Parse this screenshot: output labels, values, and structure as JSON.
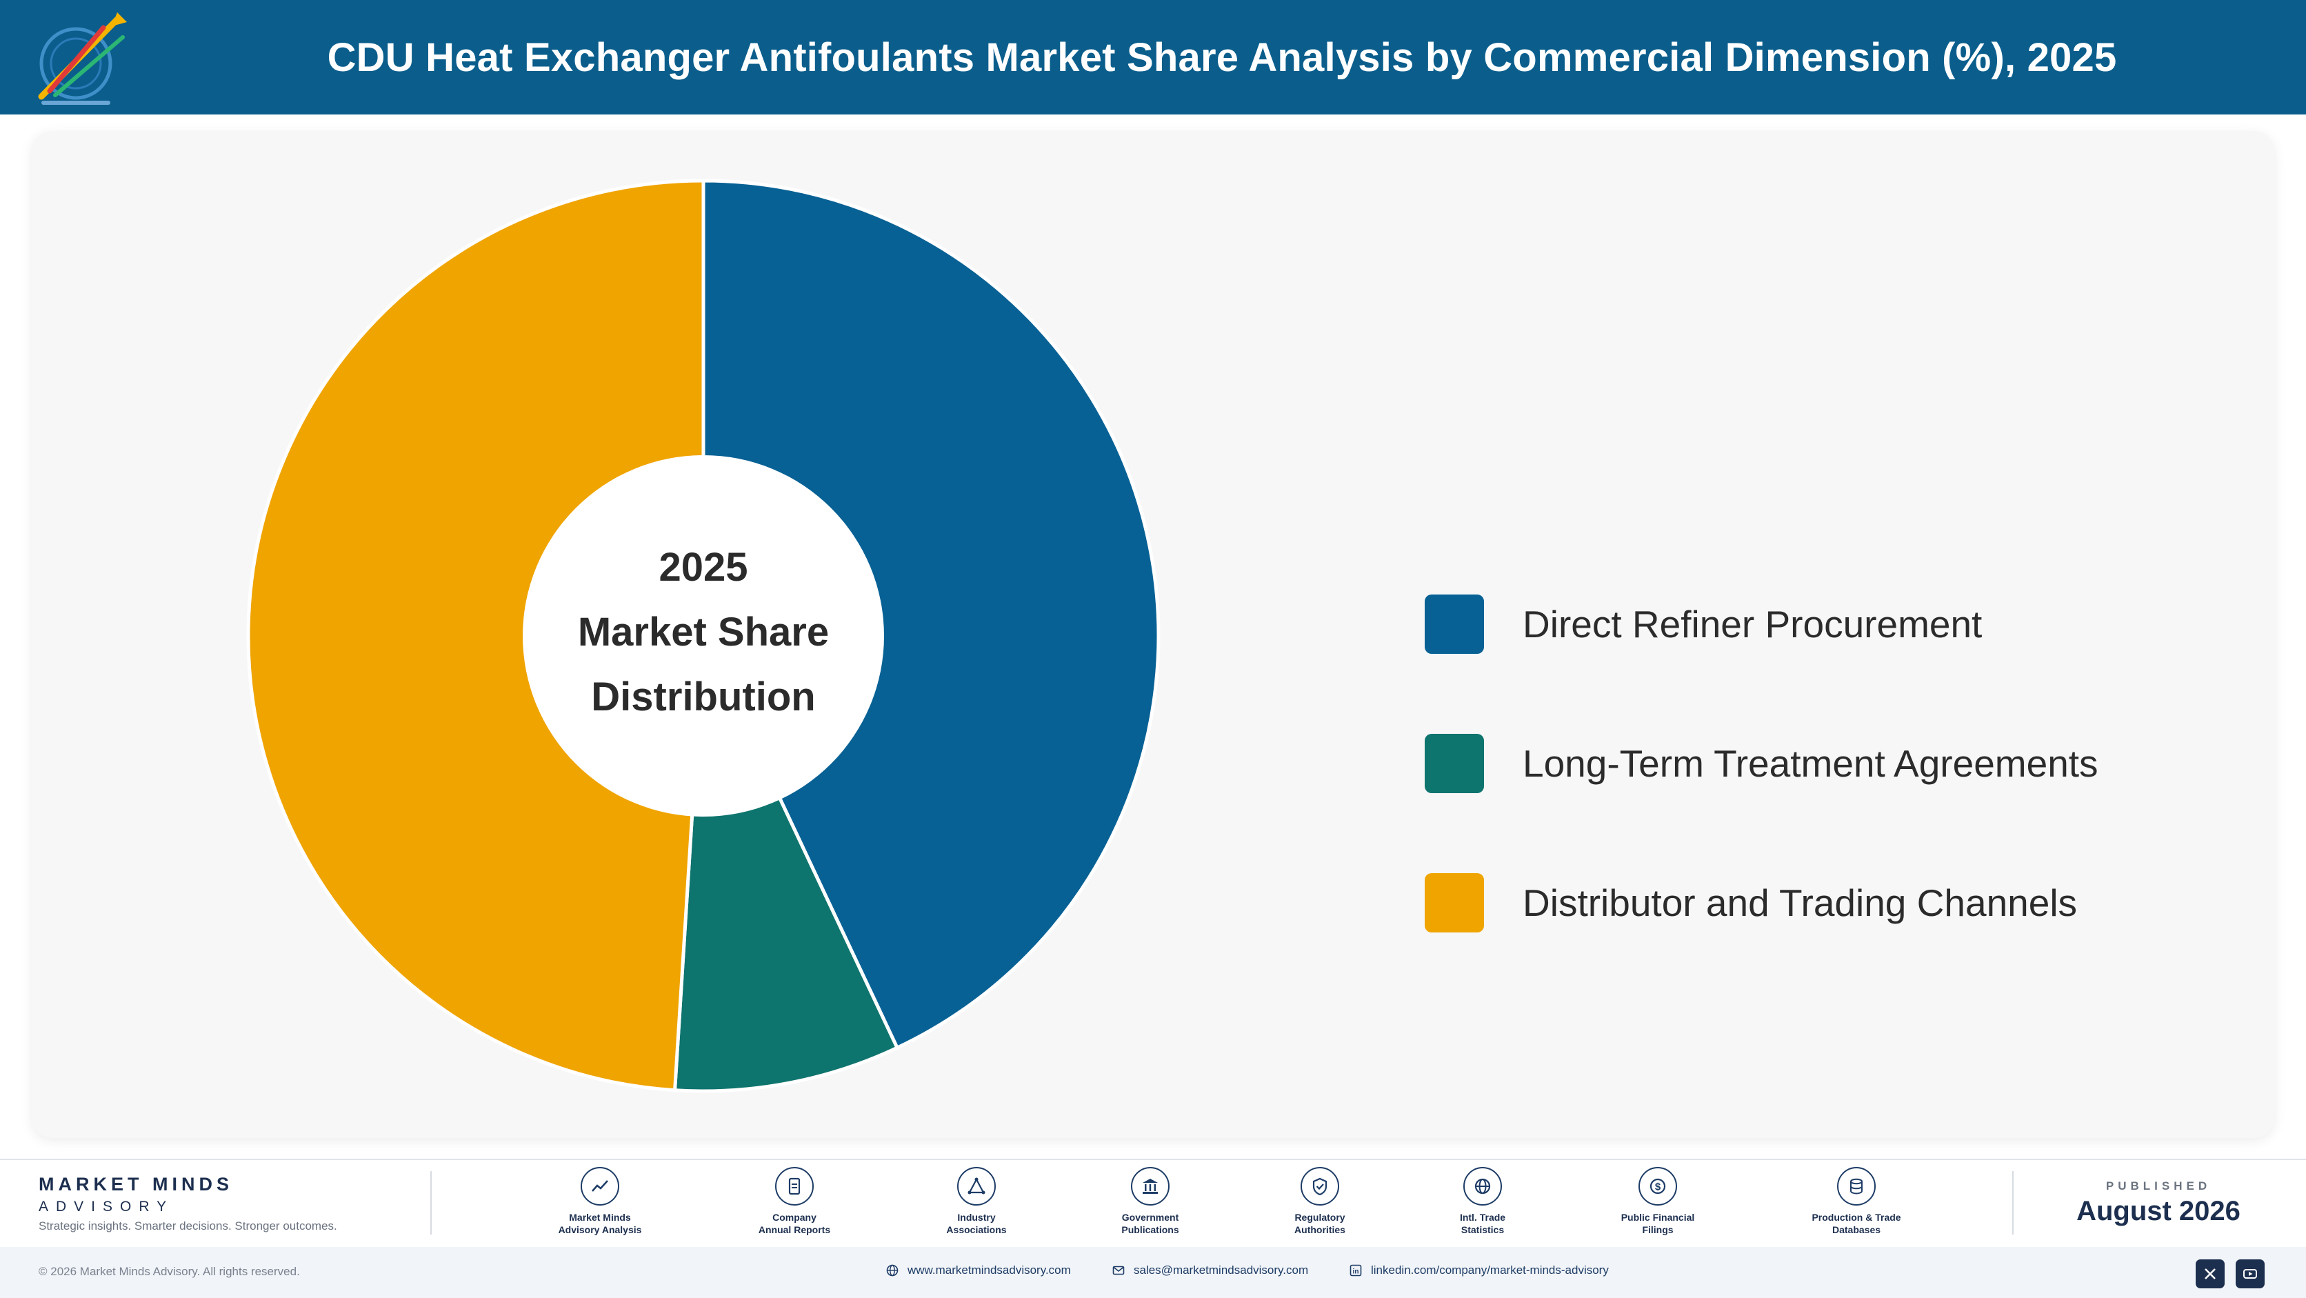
{
  "header": {
    "title": "CDU Heat Exchanger Antifoulants Market Share Analysis by Commercial Dimension (%), 2025",
    "logo_icon": "market-minds-logo-icon"
  },
  "chart_data": {
    "type": "pie",
    "donut": true,
    "title": "CDU Heat Exchanger Antifoulants Market Share Analysis by Commercial Dimension (%), 2025",
    "center_label": [
      "2025",
      "Market Share",
      "Distribution"
    ],
    "legend_position": "right",
    "categories": [
      "Direct Refiner Procurement",
      "Long-Term Treatment Agreements",
      "Distributor and Trading Channels"
    ],
    "values": [
      43,
      8,
      49
    ],
    "colors": [
      "#076195",
      "#0e746e",
      "#f0a400"
    ]
  },
  "footer": {
    "brand_name": "MARKET MINDS",
    "brand_sub": "ADVISORY",
    "tagline": "Strategic insights. Smarter decisions. Stronger outcomes.",
    "sources": [
      {
        "label": "Market Minds\nAdvisory Analysis",
        "icon": "trend-chart-icon"
      },
      {
        "label": "Company\nAnnual Reports",
        "icon": "document-icon"
      },
      {
        "label": "Industry\nAssociations",
        "icon": "network-icon"
      },
      {
        "label": "Government\nPublications",
        "icon": "government-building-icon"
      },
      {
        "label": "Regulatory\nAuthorities",
        "icon": "shield-check-icon"
      },
      {
        "label": "Intl. Trade\nStatistics",
        "icon": "globe-icon"
      },
      {
        "label": "Public Financial\nFilings",
        "icon": "dollar-coin-icon"
      },
      {
        "label": "Production & Trade\nDatabases",
        "icon": "database-icon"
      }
    ],
    "published_label": "PUBLISHED",
    "published_date": "August 2026",
    "copyright": "© 2026 Market Minds Advisory. All rights reserved.",
    "website": "www.marketmindsadvisory.com",
    "email": "sales@marketmindsadvisory.com",
    "linkedin": "linkedin.com/company/market-minds-advisory",
    "social_icons": [
      "x-icon",
      "youtube-icon"
    ]
  }
}
